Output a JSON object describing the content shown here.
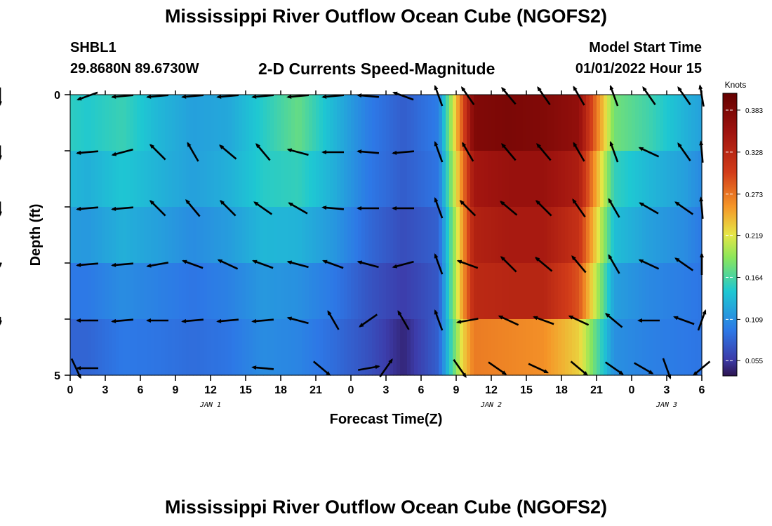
{
  "header": {
    "title": "Mississippi River Outflow Ocean Cube (NGOFS2)",
    "station_name": "SHBL1",
    "station_coords": "29.8680N  89.6730W",
    "subtitle": "2-D Currents Speed-Magnitude",
    "start_label": "Model Start Time",
    "start_value": "01/01/2022 Hour 15"
  },
  "footer": {
    "title": "Mississippi River Outflow Ocean Cube (NGOFS2)"
  },
  "chart_data": {
    "type": "heatmap",
    "xlabel": "Forecast Time(Z)",
    "ylabel": "Depth (ft)",
    "x_tick_labels": [
      "0",
      "3",
      "6",
      "9",
      "12",
      "15",
      "18",
      "21",
      "0",
      "3",
      "6",
      "9",
      "12",
      "15",
      "18",
      "21",
      "0",
      "3",
      "6"
    ],
    "date_labels": [
      {
        "label": "JAN 1",
        "hours": 12
      },
      {
        "label": "JAN 2",
        "hours": 36
      },
      {
        "label": "JAN 3",
        "hours": 51
      }
    ],
    "x_range_hours": [
      0,
      54
    ],
    "y_tick_labels": [
      "0",
      "5"
    ],
    "depth_range_ft": [
      0,
      5
    ],
    "depth_bins": 5,
    "colorbar": {
      "label": "Knots",
      "range": [
        0.035,
        0.405
      ],
      "ticks": [
        "0.383",
        "0.328",
        "0.273",
        "0.219",
        "0.164",
        "0.109",
        "0.055"
      ],
      "tick_values": [
        0.383,
        0.328,
        0.273,
        0.219,
        0.164,
        0.109,
        0.055
      ]
    },
    "time_nodes_hours": [
      0,
      1.5,
      4.5,
      7.5,
      10.5,
      13.5,
      16.5,
      19.5,
      22.5,
      25.5,
      28.5,
      31.5,
      33.5,
      34.5,
      37.5,
      40.5,
      43.5,
      46.5,
      49.5,
      52.5,
      54
    ],
    "speed_rows": [
      [
        0.17,
        0.165,
        0.17,
        0.14,
        0.12,
        0.12,
        0.15,
        0.19,
        0.14,
        0.1,
        0.075,
        0.1,
        0.3,
        0.4,
        0.4,
        0.39,
        0.38,
        0.2,
        0.18,
        0.14,
        0.13
      ],
      [
        0.135,
        0.13,
        0.145,
        0.13,
        0.12,
        0.13,
        0.15,
        0.16,
        0.13,
        0.095,
        0.08,
        0.095,
        0.27,
        0.36,
        0.37,
        0.37,
        0.35,
        0.16,
        0.14,
        0.125,
        0.11
      ],
      [
        0.135,
        0.13,
        0.145,
        0.135,
        0.12,
        0.13,
        0.15,
        0.15,
        0.13,
        0.095,
        0.075,
        0.09,
        0.26,
        0.34,
        0.35,
        0.35,
        0.33,
        0.15,
        0.13,
        0.115,
        0.1
      ],
      [
        0.1,
        0.1,
        0.115,
        0.105,
        0.095,
        0.105,
        0.12,
        0.115,
        0.1,
        0.075,
        0.06,
        0.07,
        0.24,
        0.33,
        0.34,
        0.34,
        0.3,
        0.13,
        0.11,
        0.1,
        0.09
      ],
      [
        0.09,
        0.09,
        0.1,
        0.095,
        0.09,
        0.095,
        0.11,
        0.105,
        0.09,
        0.07,
        0.055,
        0.08,
        0.26,
        0.32,
        0.32,
        0.32,
        0.28,
        0.11,
        0.1,
        0.095,
        0.095
      ],
      [
        0.075,
        0.075,
        0.09,
        0.09,
        0.085,
        0.09,
        0.105,
        0.1,
        0.085,
        0.07,
        0.035,
        0.08,
        0.19,
        0.22,
        0.21,
        0.2,
        0.18,
        0.11,
        0.1,
        0.095,
        0.09
      ]
    ],
    "arrow_times_hours": [
      0.5,
      1.5,
      4.5,
      7.5,
      10.5,
      13.5,
      16.5,
      19.5,
      22.5,
      25.5,
      28.5,
      31.5,
      34,
      37.5,
      40.5,
      43.5,
      46.5,
      49.5,
      52.5,
      54
    ],
    "arrow_directions_deg": [
      [
        null,
        200,
        185,
        185,
        185,
        185,
        185,
        185,
        185,
        175,
        160,
        110,
        125,
        130,
        125,
        120,
        110,
        125,
        125,
        100,
        235
      ],
      [
        null,
        185,
        195,
        135,
        120,
        140,
        130,
        165,
        180,
        175,
        185,
        110,
        120,
        130,
        130,
        120,
        110,
        155,
        125,
        95,
        220
      ],
      [
        null,
        185,
        185,
        135,
        130,
        135,
        145,
        150,
        175,
        180,
        180,
        110,
        135,
        140,
        135,
        125,
        120,
        150,
        145,
        95,
        220
      ],
      [
        null,
        185,
        185,
        190,
        160,
        155,
        160,
        165,
        160,
        165,
        195,
        110,
        160,
        135,
        140,
        130,
        120,
        155,
        145,
        90,
        190
      ],
      [
        null,
        180,
        185,
        180,
        185,
        185,
        185,
        165,
        120,
        215,
        120,
        110,
        190,
        155,
        160,
        155,
        140,
        180,
        160,
        70,
        200
      ]
    ],
    "bottom_arrows": [
      {
        "hours": 0.5,
        "dir_deg": 295
      },
      {
        "hours": 1.5,
        "dir_deg": 180
      },
      {
        "hours": 16.5,
        "dir_deg": 175
      },
      {
        "hours": 21.5,
        "dir_deg": 320
      },
      {
        "hours": 25.5,
        "dir_deg": 10
      },
      {
        "hours": 27,
        "dir_deg": 55
      },
      {
        "hours": 33.3,
        "dir_deg": 305
      },
      {
        "hours": 36.5,
        "dir_deg": 325
      },
      {
        "hours": 40,
        "dir_deg": 335
      },
      {
        "hours": 43.5,
        "dir_deg": 320
      },
      {
        "hours": 46.5,
        "dir_deg": 325
      },
      {
        "hours": 49,
        "dir_deg": 330
      },
      {
        "hours": 51,
        "dir_deg": 290
      },
      {
        "hours": 54,
        "dir_deg": 220
      }
    ]
  }
}
